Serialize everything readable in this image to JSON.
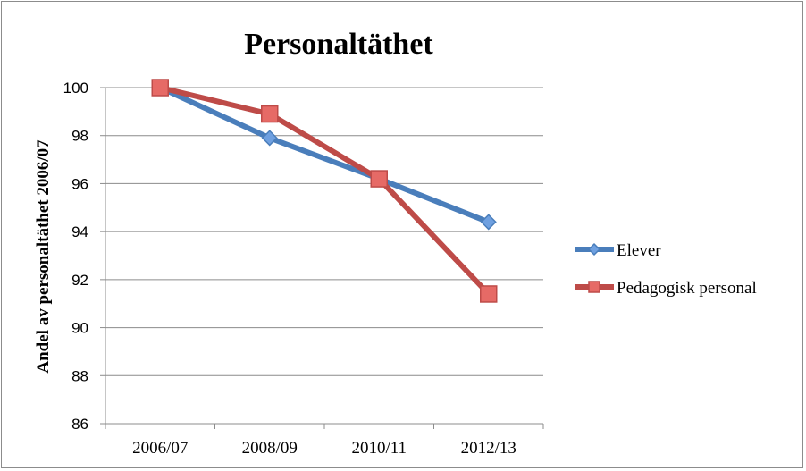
{
  "chart_data": {
    "type": "line",
    "title": "Personaltäthet",
    "xlabel": "",
    "ylabel": "Andel av personaltäthet 2006/07",
    "categories": [
      "2006/07",
      "2008/09",
      "2010/11",
      "2012/13"
    ],
    "ylim": [
      86,
      100
    ],
    "yticks": [
      86,
      88,
      90,
      92,
      94,
      96,
      98,
      100
    ],
    "grid": true,
    "legend_position": "right",
    "series": [
      {
        "name": "Elever",
        "values": [
          100,
          97.9,
          96.2,
          94.4
        ],
        "color": "#4a7ebb",
        "marker": "diamond",
        "marker_fill": "#6fa0e0"
      },
      {
        "name": "Pedagogisk personal",
        "values": [
          100,
          98.9,
          96.2,
          91.4
        ],
        "color": "#be4b48",
        "marker": "square",
        "marker_fill": "#e66a66"
      }
    ]
  }
}
